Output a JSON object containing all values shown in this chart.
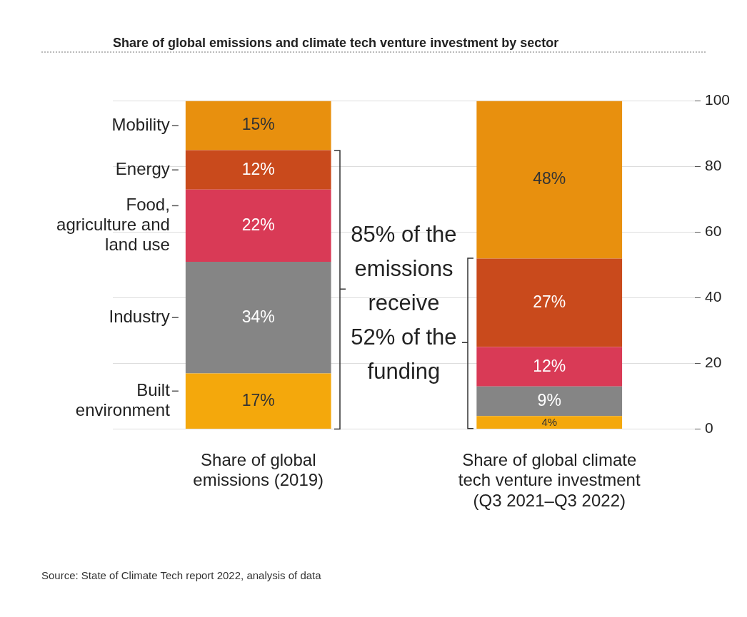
{
  "chart_data": {
    "type": "bar",
    "title": "Share of global emissions and climate tech venture investment by sector",
    "categories": [
      "Share of global emissions (2019)",
      "Share of global climate tech venture investment (Q3 2021–Q3 2022)"
    ],
    "stacked": true,
    "legend": false,
    "grid": "y",
    "series": [
      {
        "name": "Built environment",
        "color": "#f4a80c",
        "values": [
          17,
          4
        ],
        "value_labels": [
          "17%",
          "4%"
        ]
      },
      {
        "name": "Industry",
        "color": "#858585",
        "values": [
          34,
          9
        ],
        "value_labels": [
          "34%",
          "9%"
        ]
      },
      {
        "name": "Food, agriculture and land use",
        "color": "#d93a56",
        "values": [
          22,
          12
        ],
        "value_labels": [
          "22%",
          "12%"
        ]
      },
      {
        "name": "Energy",
        "color": "#c94a1c",
        "values": [
          12,
          27
        ],
        "value_labels": [
          "12%",
          "27%"
        ]
      },
      {
        "name": "Mobility",
        "color": "#e8900e",
        "values": [
          15,
          48
        ],
        "value_labels": [
          "15%",
          "48%"
        ]
      }
    ],
    "ylim": [
      0,
      100
    ],
    "yticks": [
      0,
      20,
      40,
      60,
      80,
      100
    ],
    "annotations": [
      "85% of the emissions receive 52% of the funding",
      "Source: State of Climate Tech report 2022, analysis of data"
    ]
  }
}
